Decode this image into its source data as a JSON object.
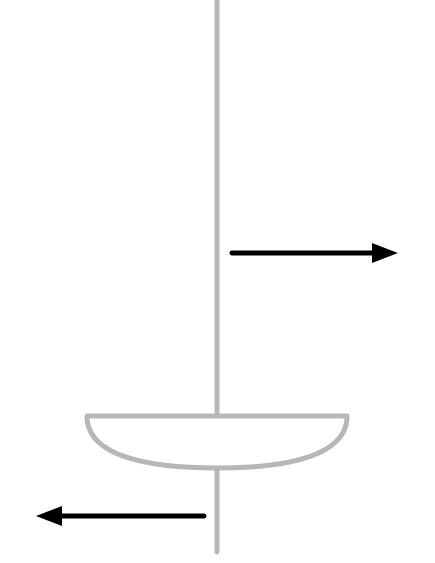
{
  "diagram": {
    "elements": [
      {
        "kind": "vertical-axis",
        "name": "optical-axis"
      },
      {
        "kind": "lens",
        "name": "plano-convex-lens-shape"
      },
      {
        "kind": "arrow",
        "direction": "right",
        "name": "arrow-right"
      },
      {
        "kind": "arrow",
        "direction": "left",
        "name": "arrow-left"
      }
    ]
  },
  "colors": {
    "axis": "#b7b7b7",
    "lens": "#b7b7b7",
    "arrow": "#000000",
    "background": "#ffffff"
  }
}
